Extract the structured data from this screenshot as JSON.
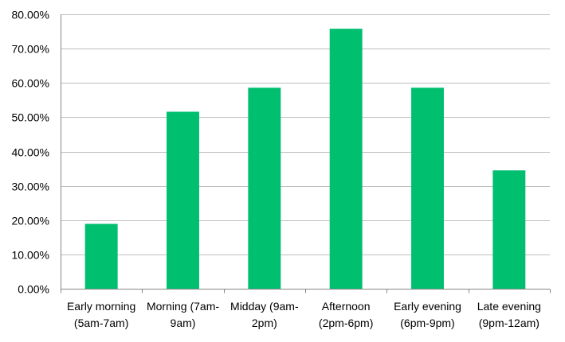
{
  "chart_data": {
    "type": "bar",
    "title": "",
    "xlabel": "",
    "ylabel": "",
    "categories": [
      [
        "Early morning",
        "(5am-7am)"
      ],
      [
        "Morning (7am-",
        "9am)"
      ],
      [
        "Midday (9am-",
        "2pm)"
      ],
      [
        "Afternoon",
        "(2pm-6pm)"
      ],
      [
        "Early evening",
        "(6pm-9pm)"
      ],
      [
        "Late evening",
        "(9pm-12am)"
      ]
    ],
    "values": [
      18.9,
      51.6,
      58.6,
      75.8,
      58.6,
      34.5
    ],
    "ylim": [
      0,
      80
    ],
    "yticks": [
      0,
      10,
      20,
      30,
      40,
      50,
      60,
      70,
      80
    ],
    "ytick_labels": [
      "0.00%",
      "10.00%",
      "20.00%",
      "30.00%",
      "40.00%",
      "50.00%",
      "60.00%",
      "70.00%",
      "80.00%"
    ],
    "grid": true,
    "legend": "none",
    "bar_color": "#00bf6f",
    "grid_color": "#bfbfbf",
    "axis_color": "#868686"
  }
}
